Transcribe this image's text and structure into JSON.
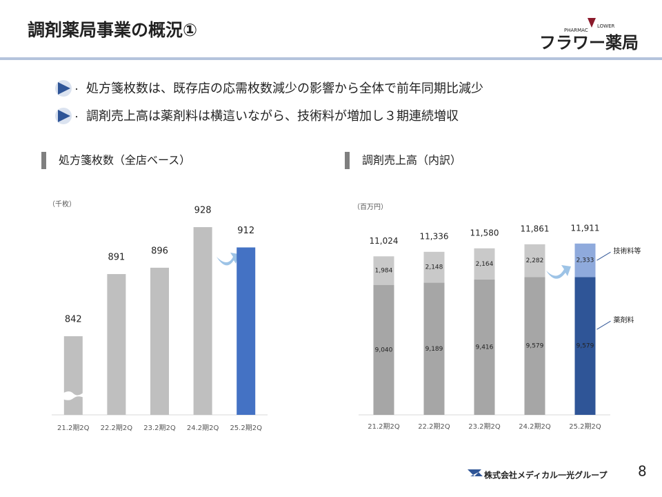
{
  "header": {
    "title": "調剤薬局事業の概況①",
    "logo": "フラワー薬局",
    "logo_sub_left": "PHARMAC",
    "logo_sub_right": "LOWER"
  },
  "bullets": [
    "処方箋枚数は、既存店の応需枚数減少の影響から全体で前年同期比減少",
    "調剤売上高は薬剤料は横這いながら、技術料が増加し３期連続増収"
  ],
  "chart_data": [
    {
      "type": "bar",
      "title": "処方箋枚数（全店ベース）",
      "unit": "（千枚）",
      "categories": [
        "21.2期2Q",
        "22.2期2Q",
        "23.2期2Q",
        "24.2期2Q",
        "25.2期2Q"
      ],
      "values": [
        842,
        891,
        896,
        928,
        912
      ],
      "colors": [
        "#bfbfbf",
        "#bfbfbf",
        "#bfbfbf",
        "#bfbfbf",
        "#4472c4"
      ],
      "ylim": [
        780,
        940
      ]
    },
    {
      "type": "stacked_bar",
      "title": "調剤売上高（内訳）",
      "unit": "（百万円）",
      "categories": [
        "21.2期2Q",
        "22.2期2Q",
        "23.2期2Q",
        "24.2期2Q",
        "25.2期2Q"
      ],
      "series": [
        {
          "name": "薬剤料",
          "values": [
            9040,
            9189,
            9416,
            9579,
            9579
          ],
          "value_labels": [
            "9,040",
            "9,189",
            "9,416",
            "9,579",
            "9,579"
          ],
          "colors": [
            "#a6a6a6",
            "#a6a6a6",
            "#a6a6a6",
            "#a6a6a6",
            "#2f5597"
          ]
        },
        {
          "name": "技術料等",
          "values": [
            1984,
            2148,
            2164,
            2282,
            2333
          ],
          "value_labels": [
            "1,984",
            "2,148",
            "2,164",
            "2,282",
            "2,333"
          ],
          "colors": [
            "#c9c9c9",
            "#c9c9c9",
            "#c9c9c9",
            "#c9c9c9",
            "#8faadc"
          ]
        }
      ],
      "totals": [
        {
          "value": 11024,
          "label": "11,024"
        },
        {
          "value": 11336,
          "label": "11,336"
        },
        {
          "value": 11580,
          "label": "11,580"
        },
        {
          "value": 11861,
          "label": "11,861"
        },
        {
          "value": 11911,
          "label": "11,911"
        }
      ],
      "ylim": [
        0,
        12000
      ]
    }
  ],
  "footer": {
    "company": "株式会社メディカル一光グループ",
    "page": "8"
  }
}
